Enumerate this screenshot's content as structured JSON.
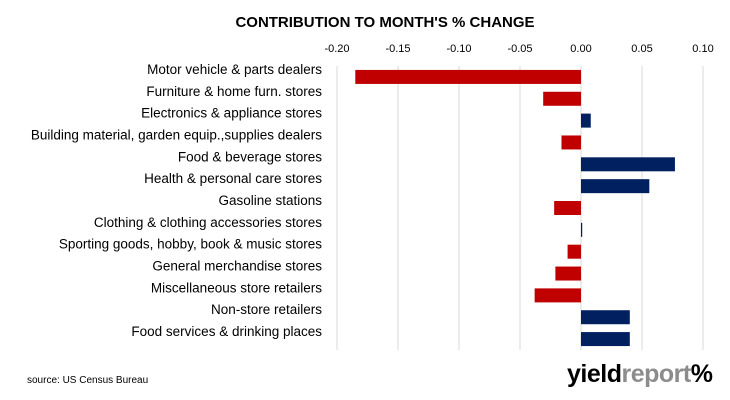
{
  "chart_data": {
    "type": "bar",
    "orientation": "horizontal",
    "title": "CONTRIBUTION TO MONTH'S % CHANGE",
    "xlim": [
      -0.2,
      0.1
    ],
    "xticks": [
      -0.2,
      -0.15,
      -0.1,
      -0.05,
      0.0,
      0.05,
      0.1
    ],
    "xtick_labels": [
      "-0.20",
      "-0.15",
      "-0.10",
      "-0.05",
      "0.00",
      "0.05",
      "0.10"
    ],
    "grid": true,
    "categories": [
      "Motor vehicle & parts dealers",
      "Furniture & home furn. stores",
      "Electronics & appliance stores",
      "Building material, garden equip.,supplies dealers",
      "Food & beverage stores",
      "Health & personal care stores",
      "Gasoline stations",
      "Clothing & clothing accessories stores",
      "Sporting goods, hobby, book & music stores",
      "General merchandise stores",
      "Miscellaneous store retailers",
      "Non-store retailers",
      "Food services & drinking places"
    ],
    "values": [
      -0.185,
      -0.031,
      0.008,
      -0.016,
      0.077,
      0.056,
      -0.022,
      0.001,
      -0.011,
      -0.021,
      -0.038,
      0.04,
      0.04
    ],
    "colors": {
      "negative": "#c00000",
      "positive": "#002060",
      "grid": "#d9d9d9"
    }
  },
  "footer": {
    "source": "source: US Census Bureau",
    "logo_part1": "yield",
    "logo_part2": "report",
    "logo_symbol": "%"
  }
}
